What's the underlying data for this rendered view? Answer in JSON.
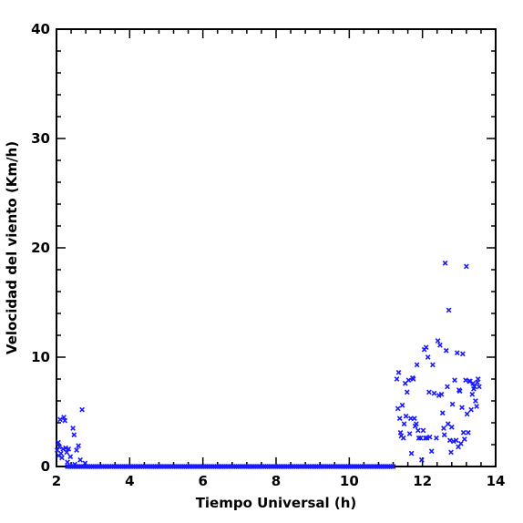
{
  "chart_data": {
    "type": "scatter",
    "title": "",
    "xlabel": "Tiempo Universal (h)",
    "ylabel": "Velocidad del viento (Km/h)",
    "xlim": [
      2,
      14
    ],
    "ylim": [
      0,
      40
    ],
    "xticks": [
      2,
      4,
      6,
      8,
      10,
      12,
      14
    ],
    "yticks": [
      0,
      10,
      20,
      30,
      40
    ],
    "xtick_labels": [
      "2",
      "4",
      "6",
      "8",
      "10",
      "12",
      "14"
    ],
    "ytick_labels": [
      "0",
      "10",
      "20",
      "30",
      "40"
    ],
    "marker": "x",
    "color": "#1a1aff",
    "grid": false,
    "legend": "none",
    "series": [
      {
        "x": [
          2.02,
          2.05,
          2.06,
          2.08,
          2.1,
          2.12,
          2.15,
          2.18,
          2.2,
          2.23,
          2.25,
          2.28,
          2.3,
          2.33,
          2.38,
          2.45,
          2.48,
          2.5,
          2.55,
          2.6,
          2.65,
          2.7,
          2.78,
          11.3,
          11.33,
          11.35,
          11.38,
          11.4,
          11.42,
          11.45,
          11.48,
          11.5,
          11.53,
          11.55,
          11.58,
          11.62,
          11.65,
          11.68,
          11.7,
          11.73,
          11.75,
          11.78,
          11.8,
          11.83,
          11.85,
          11.88,
          11.9,
          11.95,
          11.98,
          12.02,
          12.05,
          12.08,
          12.1,
          12.12,
          12.15,
          12.18,
          12.2,
          12.25,
          12.28,
          12.32,
          12.38,
          12.42,
          12.45,
          12.48,
          12.52,
          12.55,
          12.58,
          12.6,
          12.62,
          12.65,
          12.68,
          12.7,
          12.72,
          12.75,
          12.78,
          12.8,
          12.82,
          12.85,
          12.88,
          12.92,
          12.95,
          12.98,
          13.0,
          13.02,
          13.05,
          13.08,
          13.1,
          13.12,
          13.15,
          13.18,
          13.2,
          13.22,
          13.25,
          13.28,
          13.3,
          13.33,
          13.36,
          13.38,
          13.4,
          13.42,
          13.45,
          13.48,
          13.5,
          13.52,
          13.55
        ],
        "y": [
          1.5,
          2.2,
          1.0,
          1.8,
          4.3,
          1.2,
          0.8,
          1.6,
          4.5,
          4.2,
          1.7,
          1.3,
          0.4,
          1.6,
          0.9,
          3.5,
          2.9,
          0.2,
          1.5,
          1.9,
          0.6,
          5.2,
          0.3,
          8.0,
          5.3,
          8.6,
          4.4,
          3.1,
          2.8,
          5.6,
          2.6,
          3.9,
          7.6,
          4.6,
          6.8,
          7.9,
          3.0,
          4.4,
          1.2,
          8.1,
          8.0,
          4.4,
          3.7,
          3.9,
          9.3,
          3.3,
          2.6,
          2.6,
          0.6,
          3.3,
          10.7,
          2.6,
          10.9,
          2.6,
          10.0,
          6.8,
          2.7,
          1.4,
          9.3,
          6.7,
          2.6,
          11.5,
          6.5,
          11.1,
          6.6,
          4.9,
          3.5,
          2.9,
          18.6,
          10.6,
          7.3,
          3.9,
          14.3,
          2.4,
          1.3,
          3.6,
          5.7,
          2.3,
          7.9,
          2.4,
          10.4,
          1.8,
          7.0,
          6.9,
          2.1,
          5.4,
          10.3,
          3.1,
          2.5,
          7.9,
          18.3,
          4.8,
          3.1,
          7.8,
          7.8,
          5.2,
          6.6,
          7.6,
          7.1,
          7.3,
          6.0,
          5.5,
          7.7,
          8.0,
          7.3
        ]
      },
      {
        "x_range": [
          2.3,
          11.2
        ],
        "y": 0,
        "count": 190
      }
    ]
  }
}
